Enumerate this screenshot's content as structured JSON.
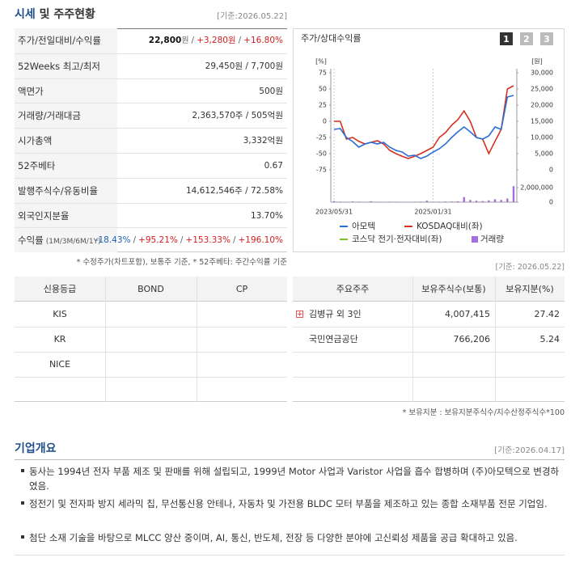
{
  "quote_section": {
    "title_main": "시세",
    "title_rest": "및 주주현황",
    "as_of": "[기준:2026.05.22]",
    "rows": [
      {
        "label": "주가/전일대비/수익률",
        "value": [
          {
            "text": "22,800",
            "tone": "strong"
          },
          {
            "text": "원",
            "tone": "unit"
          },
          {
            "text": "/",
            "tone": "sep"
          },
          {
            "text": "+3,280원",
            "tone": "up"
          },
          {
            "text": "/",
            "tone": "sep"
          },
          {
            "text": "+16.80%",
            "tone": "up"
          }
        ]
      },
      {
        "label": "52Weeks 최고/최저",
        "value": "29,450원 / 7,700원"
      },
      {
        "label": "액면가",
        "value": "500원"
      },
      {
        "label": "거래량/거래대금",
        "value": "2,363,570주 / 505억원"
      },
      {
        "label": "시가총액",
        "value": "3,332억원"
      },
      {
        "label": "52주베타",
        "value": "0.67"
      },
      {
        "label": "발행주식수/유동비율",
        "value": "14,612,546주 / 72.58%"
      },
      {
        "label": "외국인지분율",
        "value": "13.70%"
      },
      {
        "label": "수익률",
        "label_note": "(1M/3M/6M/1Y)",
        "value": [
          {
            "text": "-18.43%",
            "tone": "down"
          },
          {
            "text": "/",
            "tone": "sep"
          },
          {
            "text": "+95.21%",
            "tone": "up"
          },
          {
            "text": "/",
            "tone": "sep"
          },
          {
            "text": "+153.33%",
            "tone": "up"
          },
          {
            "text": "/",
            "tone": "sep"
          },
          {
            "text": "+196.10%",
            "tone": "up"
          }
        ]
      }
    ],
    "footnote": "* 수정주가(차트포함), 보통주 기준, * 52주베타: 주간수익률 기준"
  },
  "chart": {
    "type": "line",
    "title": "주가/상대수익률",
    "buttons": [
      "1",
      "2",
      "3"
    ],
    "active_button": 0,
    "y_unit": "[%]",
    "y2_unit": "[원]",
    "categories": [
      "2023/05/31",
      null,
      null,
      null,
      null,
      null,
      null,
      null,
      null,
      null,
      null,
      null,
      null,
      null,
      null,
      null,
      "2025/01/31",
      null,
      null,
      null,
      null,
      null,
      null,
      null,
      null,
      null,
      null,
      null,
      null,
      null
    ],
    "ylim": [
      -75,
      75
    ],
    "yticks": [
      75,
      50,
      25,
      0,
      -25,
      -50,
      -75
    ],
    "y2lim": [
      0,
      30000
    ],
    "y2ticks": [
      {
        "value": 30000,
        "label": "30,000"
      },
      {
        "value": 25000,
        "label": "25,000"
      },
      {
        "value": 20000,
        "label": "20,000"
      },
      {
        "value": 15000,
        "label": "15,000"
      },
      {
        "value": 10000,
        "label": "10,000"
      },
      {
        "value": 5000,
        "label": "5,000"
      },
      0
    ],
    "volume_lim": [
      0,
      2000000
    ],
    "volume_ticks": [
      {
        "value": 2000000,
        "label": "2,000,000"
      },
      0
    ],
    "series": [
      {
        "name": "아모텍",
        "color": "#2a6fd6",
        "axis": "y2",
        "values": [
          12500,
          12750,
          10000,
          8750,
          7000,
          8000,
          8500,
          8000,
          8500,
          7000,
          6000,
          5500,
          4250,
          4500,
          3500,
          4250,
          5500,
          6500,
          8000,
          10000,
          11750,
          13250,
          11750,
          10000,
          9500,
          10500,
          13250,
          12500,
          22500,
          23000
        ]
      },
      {
        "name": "KOSDAQ대비(좌)",
        "color": "#d6301f",
        "axis": "y",
        "values": [
          0,
          0,
          -27.5,
          -25,
          -31,
          -35,
          -32.5,
          -30,
          -35,
          -45,
          -50,
          -54,
          -57.5,
          -54,
          -50,
          -45,
          -40,
          -25,
          -17.5,
          -6,
          2.5,
          16,
          0,
          -25,
          -27.5,
          -50,
          -31,
          -12.5,
          50,
          55
        ]
      },
      {
        "name": "코스닥 전기·전자대비(좌)",
        "color": "#7cc22e",
        "axis": "y",
        "values": [
          null,
          null,
          null,
          null,
          null,
          null,
          null,
          null,
          null,
          null,
          null,
          null,
          null,
          null,
          null,
          null,
          null,
          null,
          null,
          null,
          null,
          null,
          null,
          null,
          null,
          null,
          null,
          null,
          null,
          null
        ]
      },
      {
        "name": "거래량",
        "color": "#a26fdc",
        "axis": "volume",
        "values": [
          150000,
          80000,
          60000,
          100000,
          70000,
          50000,
          120000,
          60000,
          50000,
          70000,
          60000,
          40000,
          50000,
          60000,
          80000,
          200000,
          60000,
          70000,
          90000,
          100000,
          120000,
          700000,
          300000,
          200000,
          150000,
          250000,
          400000,
          300000,
          500000,
          2200000
        ]
      }
    ],
    "as_of": "[기준: 2026.05.22]"
  },
  "credit_table": {
    "header": [
      "신용등급",
      "BOND",
      "CP"
    ],
    "rows": [
      [
        "KIS",
        null,
        null
      ],
      [
        "KR",
        null,
        null
      ],
      [
        "NICE",
        null,
        null
      ],
      [
        null,
        null,
        null
      ]
    ]
  },
  "holder_table": {
    "header": [
      "주요주주",
      "보유주식수(보통)",
      "보유지분(%)"
    ],
    "rows": [
      [
        "김병규 외 3인",
        "4,007,415",
        "27.42"
      ],
      [
        "국민연금공단",
        "766,206",
        "5.24"
      ],
      [
        null,
        null,
        null
      ],
      [
        null,
        null,
        null
      ]
    ],
    "footnote": "* 보유지분 : 보유지분주식수/지수산정주식수*100"
  },
  "overview": {
    "title": "기업개요",
    "as_of": "[기준:2026.04.17]",
    "items": [
      "동사는 1994년 전자 부품 제조 및 판매를 위해 설립되고, 1999년 Motor 사업과 Varistor 사업을 흡수 합병하며 (주)아모텍으로 변경하였음.",
      "정전기 및 전자파 방지 세라믹 칩, 무선통신용 안테나, 자동차 및 가전용 BLDC 모터 부품을 제조하고 있는 종합 소재부품 전문 기업임.",
      "첨단 소재 기술을 바탕으로 MLCC 양산 중이며, AI, 통신, 반도체, 전장 등 다양한 분야에 고신뢰성 제품을 공급 확대하고 있음."
    ]
  }
}
